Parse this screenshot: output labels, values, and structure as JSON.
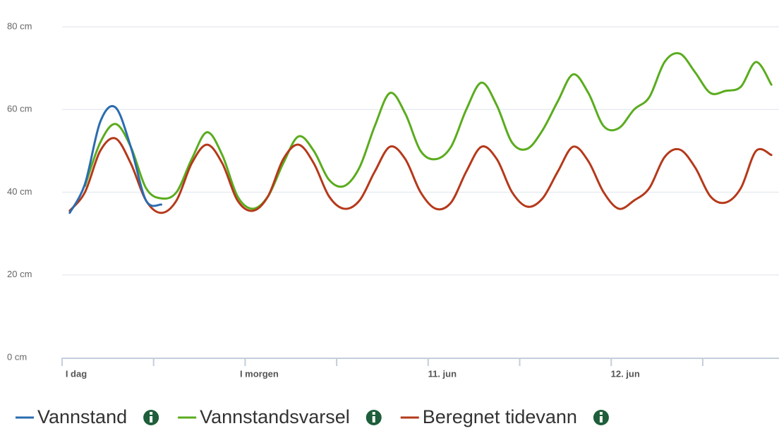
{
  "chart_data": {
    "type": "line",
    "x": [
      1,
      3,
      5,
      7,
      9,
      11,
      13,
      15,
      17,
      19,
      21,
      23,
      25,
      27,
      29,
      31,
      33,
      35,
      37,
      39,
      41,
      43,
      45,
      47,
      49,
      51,
      53,
      55,
      57,
      59,
      61,
      63,
      65,
      67,
      69,
      71,
      73,
      75,
      77,
      79,
      81,
      83,
      85,
      87,
      89,
      91,
      93
    ],
    "series": [
      {
        "name": "Vannstand",
        "color": "#2b6cb0",
        "values": [
          35,
          42,
          57,
          60.5,
          51,
          38,
          37,
          null,
          null,
          null,
          null,
          null,
          null,
          null,
          null,
          null,
          null,
          null,
          null,
          null,
          null,
          null,
          null,
          null,
          null,
          null,
          null,
          null,
          null,
          null,
          null,
          null,
          null,
          null,
          null,
          null,
          null,
          null,
          null,
          null,
          null,
          null,
          null,
          null,
          null,
          null,
          null
        ]
      },
      {
        "name": "Vannstandsvarsel",
        "color": "#5aac1e",
        "values": [
          null,
          41.5,
          52,
          56.5,
          51,
          41,
          38.5,
          40,
          48,
          54.5,
          49,
          39,
          36,
          39,
          47,
          53.5,
          50,
          43,
          41.5,
          46,
          56,
          64,
          59,
          50,
          48,
          51,
          60,
          66.5,
          61,
          52,
          50.5,
          55,
          62,
          68.5,
          64,
          56,
          55.5,
          60,
          63,
          71.5,
          73.5,
          69,
          64,
          64.5,
          65.5,
          71.5,
          66
        ]
      },
      {
        "name": "Beregnet tidevann",
        "color": "#b5391a",
        "values": [
          35.5,
          40,
          50,
          53,
          47,
          38,
          35,
          38,
          47,
          51.5,
          47,
          38,
          35.5,
          39,
          48,
          51.5,
          47,
          39,
          36,
          38,
          45,
          51,
          48,
          40,
          36,
          37.5,
          45,
          51,
          48,
          40,
          36.5,
          38.5,
          45,
          51,
          47.5,
          40,
          36,
          38,
          41,
          48.5,
          50.3,
          46,
          39,
          37.5,
          41,
          50,
          49
        ]
      }
    ],
    "xlim": [
      0,
      94
    ],
    "xticks": [
      {
        "value": 0,
        "label": "I dag"
      },
      {
        "value": 24,
        "label": "I morgen"
      },
      {
        "value": 48,
        "label": "11. jun"
      },
      {
        "value": 72,
        "label": "12. jun"
      }
    ],
    "xminor": [
      12,
      36,
      60,
      84
    ],
    "ylim": [
      0,
      80
    ],
    "yticks": [
      {
        "value": 0,
        "label": "0 cm"
      },
      {
        "value": 20,
        "label": "20 cm"
      },
      {
        "value": 40,
        "label": "40 cm"
      },
      {
        "value": 60,
        "label": "60 cm"
      },
      {
        "value": 80,
        "label": "80 cm"
      }
    ],
    "grid": true
  }
}
